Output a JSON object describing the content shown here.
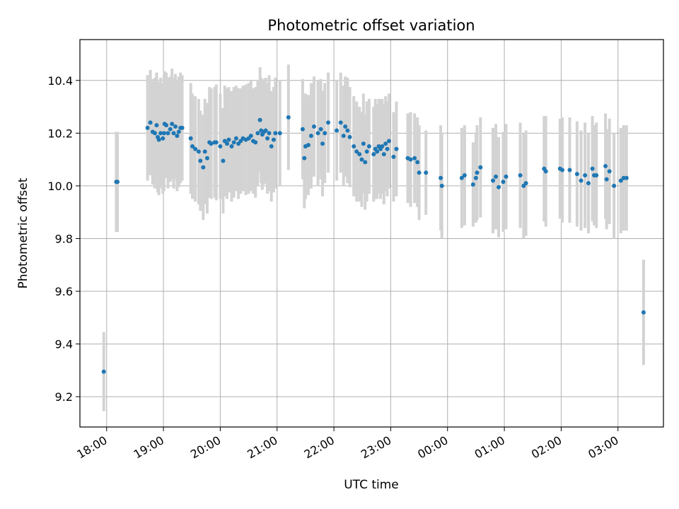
{
  "chart_data": {
    "type": "scatter",
    "title": "Photometric offset variation",
    "xlabel": "UTC time",
    "ylabel": "Photometric offset",
    "x_unit": "hours (UTC, relative to 18:00)",
    "x_ticks": [
      {
        "label": "18:00",
        "value": 0
      },
      {
        "label": "19:00",
        "value": 1
      },
      {
        "label": "20:00",
        "value": 2
      },
      {
        "label": "21:00",
        "value": 3
      },
      {
        "label": "22:00",
        "value": 4
      },
      {
        "label": "23:00",
        "value": 5
      },
      {
        "label": "00:00",
        "value": 6
      },
      {
        "label": "01:00",
        "value": 7
      },
      {
        "label": "02:00",
        "value": 8
      },
      {
        "label": "03:00",
        "value": 9
      }
    ],
    "y_ticks": [
      "9.2",
      "9.4",
      "9.6",
      "9.8",
      "10.0",
      "10.2",
      "10.4"
    ],
    "xlim": [
      -0.47,
      9.8
    ],
    "ylim": [
      9.085,
      10.555
    ],
    "grid": true,
    "legend": "none",
    "colors": {
      "points": "#1f77b4",
      "errorbars": "#d3d3d3",
      "grid": "#b0b0b0"
    },
    "series": [
      {
        "marker": "dot-with-errorbars",
        "points": [
          [
            -0.05,
            9.295,
            0.15
          ],
          [
            0.17,
            10.015,
            0.19
          ],
          [
            0.19,
            10.015,
            0.19
          ],
          [
            0.72,
            10.22,
            0.2
          ],
          [
            0.77,
            10.24,
            0.2
          ],
          [
            0.81,
            10.205,
            0.2
          ],
          [
            0.85,
            10.2,
            0.21
          ],
          [
            0.88,
            10.23,
            0.2
          ],
          [
            0.9,
            10.185,
            0.21
          ],
          [
            0.92,
            10.175,
            0.21
          ],
          [
            0.95,
            10.2,
            0.21
          ],
          [
            0.99,
            10.18,
            0.21
          ],
          [
            1.01,
            10.2,
            0.22
          ],
          [
            1.02,
            10.235,
            0.2
          ],
          [
            1.05,
            10.23,
            0.2
          ],
          [
            1.08,
            10.2,
            0.21
          ],
          [
            1.12,
            10.215,
            0.2
          ],
          [
            1.15,
            10.235,
            0.21
          ],
          [
            1.18,
            10.2,
            0.21
          ],
          [
            1.21,
            10.225,
            0.2
          ],
          [
            1.24,
            10.19,
            0.21
          ],
          [
            1.27,
            10.205,
            0.21
          ],
          [
            1.3,
            10.22,
            0.21
          ],
          [
            1.33,
            10.22,
            0.2
          ],
          [
            1.48,
            10.18,
            0.21
          ],
          [
            1.51,
            10.15,
            0.2
          ],
          [
            1.56,
            10.14,
            0.2
          ],
          [
            1.62,
            10.13,
            0.2
          ],
          [
            1.65,
            10.095,
            0.19
          ],
          [
            1.7,
            10.07,
            0.2
          ],
          [
            1.73,
            10.13,
            0.2
          ],
          [
            1.77,
            10.105,
            0.21
          ],
          [
            1.81,
            10.165,
            0.21
          ],
          [
            1.84,
            10.16,
            0.21
          ],
          [
            1.9,
            10.165,
            0.21
          ],
          [
            1.93,
            10.165,
            0.22
          ],
          [
            2.0,
            10.15,
            0.2
          ],
          [
            2.05,
            10.095,
            0.2
          ],
          [
            2.08,
            10.17,
            0.21
          ],
          [
            2.12,
            10.16,
            0.21
          ],
          [
            2.15,
            10.175,
            0.2
          ],
          [
            2.2,
            10.15,
            0.21
          ],
          [
            2.24,
            10.165,
            0.21
          ],
          [
            2.28,
            10.18,
            0.2
          ],
          [
            2.32,
            10.16,
            0.21
          ],
          [
            2.36,
            10.17,
            0.2
          ],
          [
            2.4,
            10.18,
            0.2
          ],
          [
            2.45,
            10.175,
            0.21
          ],
          [
            2.5,
            10.18,
            0.21
          ],
          [
            2.54,
            10.19,
            0.21
          ],
          [
            2.58,
            10.17,
            0.2
          ],
          [
            2.62,
            10.165,
            0.21
          ],
          [
            2.66,
            10.2,
            0.2
          ],
          [
            2.7,
            10.25,
            0.2
          ],
          [
            2.72,
            10.21,
            0.2
          ],
          [
            2.74,
            10.195,
            0.21
          ],
          [
            2.77,
            10.205,
            0.2
          ],
          [
            2.8,
            10.21,
            0.2
          ],
          [
            2.83,
            10.18,
            0.21
          ],
          [
            2.86,
            10.2,
            0.22
          ],
          [
            2.9,
            10.15,
            0.21
          ],
          [
            2.94,
            10.175,
            0.2
          ],
          [
            2.97,
            10.2,
            0.21
          ],
          [
            3.05,
            10.2,
            0.2
          ],
          [
            3.2,
            10.26,
            0.2
          ],
          [
            3.45,
            10.215,
            0.19
          ],
          [
            3.48,
            10.105,
            0.19
          ],
          [
            3.5,
            10.15,
            0.2
          ],
          [
            3.55,
            10.155,
            0.19
          ],
          [
            3.6,
            10.19,
            0.2
          ],
          [
            3.65,
            10.225,
            0.19
          ],
          [
            3.72,
            10.2,
            0.2
          ],
          [
            3.77,
            10.215,
            0.19
          ],
          [
            3.8,
            10.16,
            0.2
          ],
          [
            3.84,
            10.2,
            0.19
          ],
          [
            3.9,
            10.24,
            0.19
          ],
          [
            4.05,
            10.21,
            0.19
          ],
          [
            4.12,
            10.24,
            0.19
          ],
          [
            4.17,
            10.19,
            0.19
          ],
          [
            4.2,
            10.225,
            0.19
          ],
          [
            4.24,
            10.21,
            0.2
          ],
          [
            4.28,
            10.185,
            0.19
          ],
          [
            4.35,
            10.15,
            0.19
          ],
          [
            4.4,
            10.13,
            0.19
          ],
          [
            4.45,
            10.12,
            0.18
          ],
          [
            4.49,
            10.1,
            0.18
          ],
          [
            4.52,
            10.16,
            0.19
          ],
          [
            4.55,
            10.09,
            0.18
          ],
          [
            4.58,
            10.13,
            0.19
          ],
          [
            4.62,
            10.15,
            0.18
          ],
          [
            4.7,
            10.12,
            0.18
          ],
          [
            4.73,
            10.14,
            0.19
          ],
          [
            4.76,
            10.13,
            0.18
          ],
          [
            4.79,
            10.15,
            0.18
          ],
          [
            4.82,
            10.14,
            0.19
          ],
          [
            4.85,
            10.15,
            0.18
          ],
          [
            4.88,
            10.12,
            0.19
          ],
          [
            4.91,
            10.16,
            0.18
          ],
          [
            4.94,
            10.14,
            0.18
          ],
          [
            4.97,
            10.17,
            0.18
          ],
          [
            5.05,
            10.11,
            0.17
          ],
          [
            5.1,
            10.14,
            0.18
          ],
          [
            5.3,
            10.105,
            0.17
          ],
          [
            5.35,
            10.1,
            0.18
          ],
          [
            5.42,
            10.105,
            0.17
          ],
          [
            5.47,
            10.09,
            0.17
          ],
          [
            5.5,
            10.05,
            0.18
          ],
          [
            5.62,
            10.05,
            0.16
          ],
          [
            5.88,
            10.03,
            0.2
          ],
          [
            5.9,
            10.0,
            0.2
          ],
          [
            6.25,
            10.03,
            0.19
          ],
          [
            6.3,
            10.04,
            0.19
          ],
          [
            6.45,
            10.005,
            0.16
          ],
          [
            6.5,
            10.03,
            0.17
          ],
          [
            6.52,
            10.05,
            0.18
          ],
          [
            6.58,
            10.07,
            0.19
          ],
          [
            6.8,
            10.02,
            0.2
          ],
          [
            6.85,
            10.035,
            0.2
          ],
          [
            6.9,
            9.995,
            0.19
          ],
          [
            6.98,
            10.015,
            0.19
          ],
          [
            7.03,
            10.035,
            0.2
          ],
          [
            7.28,
            10.04,
            0.2
          ],
          [
            7.34,
            10.0,
            0.2
          ],
          [
            7.38,
            10.01,
            0.2
          ],
          [
            7.7,
            10.065,
            0.2
          ],
          [
            7.73,
            10.055,
            0.21
          ],
          [
            7.98,
            10.065,
            0.19
          ],
          [
            8.02,
            10.06,
            0.2
          ],
          [
            8.15,
            10.06,
            0.2
          ],
          [
            8.28,
            10.045,
            0.2
          ],
          [
            8.35,
            10.02,
            0.19
          ],
          [
            8.42,
            10.04,
            0.2
          ],
          [
            8.48,
            10.01,
            0.19
          ],
          [
            8.55,
            10.065,
            0.2
          ],
          [
            8.58,
            10.04,
            0.19
          ],
          [
            8.62,
            10.04,
            0.2
          ],
          [
            8.78,
            10.075,
            0.2
          ],
          [
            8.8,
            10.025,
            0.19
          ],
          [
            8.85,
            10.055,
            0.2
          ],
          [
            8.93,
            10.0,
            0.2
          ],
          [
            9.05,
            10.02,
            0.2
          ],
          [
            9.1,
            10.03,
            0.2
          ],
          [
            9.15,
            10.03,
            0.2
          ],
          [
            9.45,
            9.52,
            0.2
          ]
        ]
      }
    ]
  }
}
